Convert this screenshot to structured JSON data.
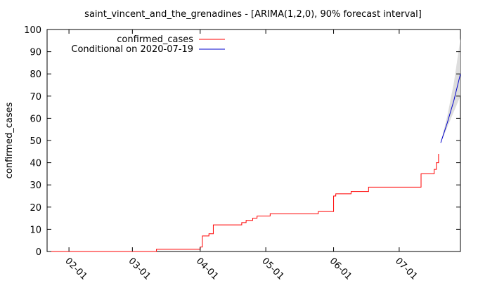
{
  "chart_data": {
    "type": "line",
    "title": "saint_vincent_and_the_grenadines -  [ARIMA(1,2,0), 90% forecast interval]",
    "xlabel": "",
    "ylabel": "confirmed_cases",
    "xlim": [
      "2020-01-22",
      "2020-07-29"
    ],
    "ylim": [
      0,
      100
    ],
    "yticks": [
      0,
      10,
      20,
      30,
      40,
      50,
      60,
      70,
      80,
      90,
      100
    ],
    "xticks": [
      {
        "date": "2020-02-01",
        "label": "02-01"
      },
      {
        "date": "2020-03-01",
        "label": "03-01"
      },
      {
        "date": "2020-04-01",
        "label": "04-01"
      },
      {
        "date": "2020-05-01",
        "label": "05-01"
      },
      {
        "date": "2020-06-01",
        "label": "06-01"
      },
      {
        "date": "2020-07-01",
        "label": "07-01"
      }
    ],
    "grid": false,
    "legend_position": "top-left",
    "series": [
      {
        "name": "confirmed_cases",
        "color": "#ff0000",
        "points": [
          [
            "2020-01-22",
            0
          ],
          [
            "2020-03-11",
            0
          ],
          [
            "2020-03-12",
            1
          ],
          [
            "2020-03-31",
            1
          ],
          [
            "2020-04-01",
            2
          ],
          [
            "2020-04-02",
            7
          ],
          [
            "2020-04-04",
            7
          ],
          [
            "2020-04-05",
            8
          ],
          [
            "2020-04-06",
            8
          ],
          [
            "2020-04-07",
            12
          ],
          [
            "2020-04-19",
            12
          ],
          [
            "2020-04-20",
            13
          ],
          [
            "2020-04-22",
            14
          ],
          [
            "2020-04-25",
            15
          ],
          [
            "2020-04-27",
            16
          ],
          [
            "2020-05-02",
            16
          ],
          [
            "2020-05-03",
            17
          ],
          [
            "2020-05-24",
            17
          ],
          [
            "2020-05-25",
            18
          ],
          [
            "2020-05-31",
            18
          ],
          [
            "2020-06-01",
            25
          ],
          [
            "2020-06-02",
            26
          ],
          [
            "2020-06-08",
            26
          ],
          [
            "2020-06-09",
            27
          ],
          [
            "2020-06-16",
            27
          ],
          [
            "2020-06-17",
            29
          ],
          [
            "2020-07-10",
            29
          ],
          [
            "2020-07-11",
            35
          ],
          [
            "2020-07-16",
            35
          ],
          [
            "2020-07-17",
            37
          ],
          [
            "2020-07-18",
            40
          ],
          [
            "2020-07-19",
            44
          ]
        ]
      },
      {
        "name": "Conditional on 2020-07-19",
        "color": "#0000cc",
        "points": [
          [
            "2020-07-20",
            49
          ],
          [
            "2020-07-23",
            58
          ],
          [
            "2020-07-26",
            68
          ],
          [
            "2020-07-29",
            80
          ]
        ]
      }
    ],
    "forecast_interval": {
      "color": "#dddddd",
      "lower": [
        [
          "2020-07-20",
          49
        ],
        [
          "2020-07-23",
          56
        ],
        [
          "2020-07-26",
          63
        ],
        [
          "2020-07-29",
          70
        ]
      ],
      "upper": [
        [
          "2020-07-20",
          49
        ],
        [
          "2020-07-23",
          61
        ],
        [
          "2020-07-26",
          76
        ],
        [
          "2020-07-29",
          96
        ]
      ]
    }
  }
}
